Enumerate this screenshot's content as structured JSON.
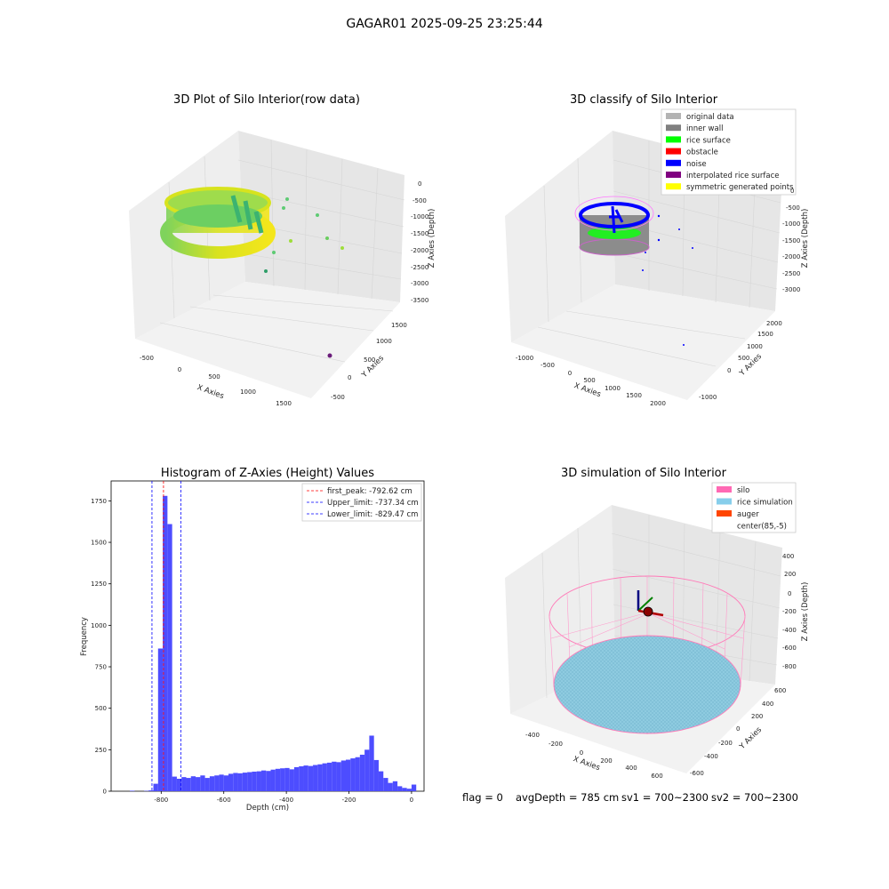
{
  "suptitle": "GAGAR01 2025-09-25 23:25:44",
  "footer": {
    "flag": "flag = 0",
    "avg": "avgDepth = 785 cm",
    "sv1": "sv1 = 700~2300",
    "sv2": "sv2 = 700~2300"
  },
  "chart_data": [
    {
      "type": "scatter",
      "title": "3D Plot of Silo Interior(row data)",
      "xlabel": "X Axies",
      "ylabel": "Y Axies",
      "zlabel": "Z Axies (Depth)",
      "x_ticks": [
        "-500",
        "0",
        "500",
        "1000",
        "1500"
      ],
      "y_ticks": [
        "-500",
        "0",
        "500",
        "1000",
        "1500"
      ],
      "z_ticks": [
        "0",
        "-500",
        "-1000",
        "-1500",
        "-2000",
        "-2500",
        "-3000",
        "-3500"
      ]
    },
    {
      "type": "scatter",
      "title": "3D classify of Silo Interior",
      "xlabel": "X Axies",
      "ylabel": "Y Axies",
      "zlabel": "Z Axies (Depth)",
      "x_ticks": [
        "-1000",
        "-500",
        "0",
        "500",
        "1000",
        "1500",
        "2000"
      ],
      "y_ticks": [
        "-1000",
        "0",
        "500",
        "1000",
        "1500",
        "2000"
      ],
      "z_ticks": [
        "0",
        "-500",
        "-1000",
        "-1500",
        "-2000",
        "-2500",
        "-3000"
      ],
      "legend": [
        {
          "label": "original data",
          "color": "#b3b3b3"
        },
        {
          "label": "inner wall",
          "color": "#808080"
        },
        {
          "label": "rice surface",
          "color": "#00ff00"
        },
        {
          "label": "obstacle",
          "color": "#ff0000"
        },
        {
          "label": "noise",
          "color": "#0000ff"
        },
        {
          "label": "interpolated rice surface",
          "color": "#800080"
        },
        {
          "label": "symmetric generated points",
          "color": "#ffff00"
        }
      ]
    },
    {
      "type": "bar",
      "title": "Histogram of Z-Axies (Height) Values",
      "xlabel": "Depth (cm)",
      "ylabel": "Frequency",
      "xlim": [
        -960,
        40
      ],
      "ylim": [
        0,
        1870
      ],
      "x_ticks": [
        -800,
        -600,
        -400,
        -200,
        0
      ],
      "y_ticks": [
        0,
        250,
        500,
        750,
        1000,
        1250,
        1500,
        1750
      ],
      "bin_width": 15,
      "bars": [
        {
          "x": -900,
          "v": 3
        },
        {
          "x": -855,
          "v": 2
        },
        {
          "x": -840,
          "v": 5
        },
        {
          "x": -825,
          "v": 45
        },
        {
          "x": -810,
          "v": 860
        },
        {
          "x": -795,
          "v": 1780
        },
        {
          "x": -780,
          "v": 1610
        },
        {
          "x": -765,
          "v": 88
        },
        {
          "x": -750,
          "v": 75
        },
        {
          "x": -735,
          "v": 85
        },
        {
          "x": -720,
          "v": 80
        },
        {
          "x": -705,
          "v": 90
        },
        {
          "x": -690,
          "v": 85
        },
        {
          "x": -675,
          "v": 95
        },
        {
          "x": -660,
          "v": 80
        },
        {
          "x": -645,
          "v": 90
        },
        {
          "x": -630,
          "v": 95
        },
        {
          "x": -615,
          "v": 100
        },
        {
          "x": -600,
          "v": 95
        },
        {
          "x": -585,
          "v": 105
        },
        {
          "x": -570,
          "v": 110
        },
        {
          "x": -555,
          "v": 108
        },
        {
          "x": -540,
          "v": 112
        },
        {
          "x": -525,
          "v": 115
        },
        {
          "x": -510,
          "v": 118
        },
        {
          "x": -495,
          "v": 120
        },
        {
          "x": -480,
          "v": 125
        },
        {
          "x": -465,
          "v": 122
        },
        {
          "x": -450,
          "v": 130
        },
        {
          "x": -435,
          "v": 135
        },
        {
          "x": -420,
          "v": 138
        },
        {
          "x": -405,
          "v": 140
        },
        {
          "x": -390,
          "v": 132
        },
        {
          "x": -375,
          "v": 145
        },
        {
          "x": -360,
          "v": 150
        },
        {
          "x": -345,
          "v": 155
        },
        {
          "x": -330,
          "v": 152
        },
        {
          "x": -315,
          "v": 158
        },
        {
          "x": -300,
          "v": 162
        },
        {
          "x": -285,
          "v": 168
        },
        {
          "x": -270,
          "v": 172
        },
        {
          "x": -255,
          "v": 178
        },
        {
          "x": -240,
          "v": 175
        },
        {
          "x": -225,
          "v": 185
        },
        {
          "x": -210,
          "v": 190
        },
        {
          "x": -195,
          "v": 198
        },
        {
          "x": -180,
          "v": 205
        },
        {
          "x": -165,
          "v": 220
        },
        {
          "x": -150,
          "v": 250
        },
        {
          "x": -135,
          "v": 335
        },
        {
          "x": -120,
          "v": 188
        },
        {
          "x": -105,
          "v": 120
        },
        {
          "x": -90,
          "v": 80
        },
        {
          "x": -75,
          "v": 50
        },
        {
          "x": -60,
          "v": 60
        },
        {
          "x": -45,
          "v": 30
        },
        {
          "x": -30,
          "v": 20
        },
        {
          "x": -15,
          "v": 15
        },
        {
          "x": 0,
          "v": 40
        }
      ],
      "vlines": [
        {
          "label": "first_peak: -792.62 cm",
          "x": -792.62,
          "color": "#ff0000"
        },
        {
          "label": "Upper_limit: -737.34 cm",
          "x": -737.34,
          "color": "#0000ff"
        },
        {
          "label": "Lower_limit: -829.47 cm",
          "x": -829.47,
          "color": "#0000ff"
        }
      ],
      "bar_color": "#4d4dff"
    },
    {
      "type": "surface",
      "title": "3D simulation of Silo Interior",
      "xlabel": "X Axies",
      "ylabel": "Y Axies",
      "zlabel": "Z Axies (Depth)",
      "x_ticks": [
        "-400",
        "-200",
        "0",
        "200",
        "400",
        "600"
      ],
      "y_ticks": [
        "-600",
        "-400",
        "-200",
        "0",
        "200",
        "400",
        "600"
      ],
      "z_ticks": [
        "400",
        "200",
        "0",
        "-200",
        "-400",
        "-600",
        "-800"
      ],
      "legend": [
        {
          "label": "silo",
          "color": "#ff69b4"
        },
        {
          "label": "rice simulation",
          "color": "#87ceeb"
        },
        {
          "label": "auger",
          "color": "#ff4500"
        },
        {
          "label": "center(85,-5)",
          "color": "#ffffff"
        }
      ]
    }
  ]
}
